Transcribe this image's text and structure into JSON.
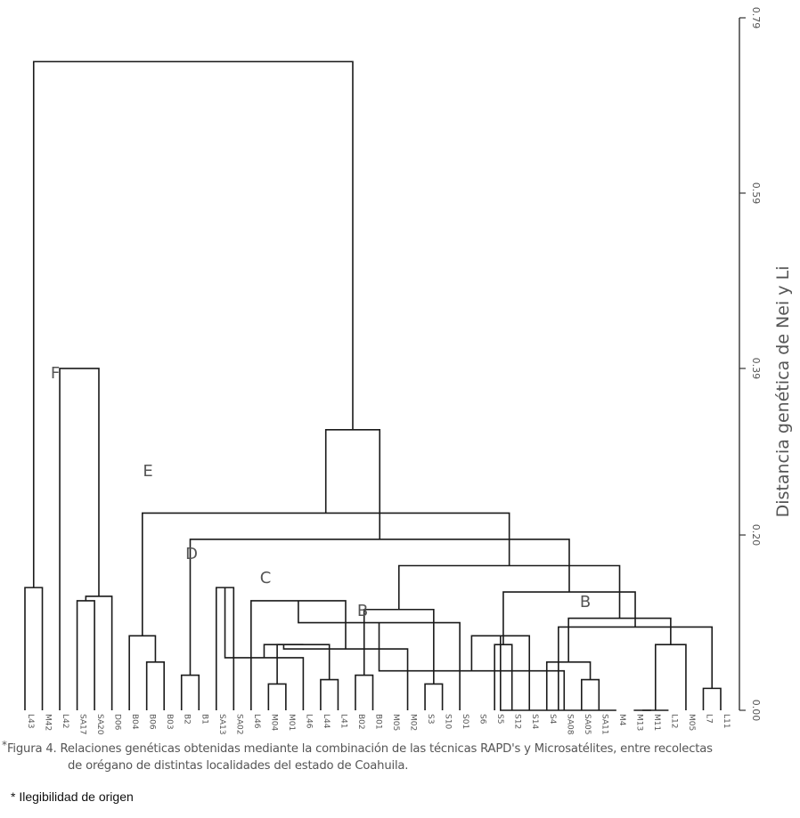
{
  "chart_data": {
    "type": "dendrogram",
    "axis": {
      "label": "Distancia genética de Nei y Li",
      "ticks": [
        "0.79",
        "0.59",
        "0.39",
        "0.20",
        "0.00"
      ],
      "range": [
        0.0,
        0.79
      ]
    },
    "leaves": [
      "L43",
      "M42",
      "L42",
      "SA17",
      "SA20",
      "D06",
      "B04",
      "B06",
      "B03",
      "B2",
      "B1",
      "SA13",
      "SA02",
      "L46",
      "M04",
      "M01",
      "L46",
      "L44",
      "L41",
      "B02",
      "B01",
      "M05",
      "M02",
      "S3",
      "S10",
      "S01",
      "S6",
      "S5",
      "S12",
      "S14",
      "S4",
      "SA08",
      "SA05",
      "SA11",
      "M4",
      "M13",
      "M11",
      "L12",
      "M05",
      "L7",
      "L11"
    ],
    "clusters": [
      "F",
      "E",
      "D",
      "C",
      "B",
      "B"
    ],
    "merges": [
      {
        "a": 0,
        "b": 1,
        "h": 0.14
      },
      {
        "a": 3,
        "b": 4,
        "h": 0.125
      },
      {
        "a": 7,
        "b": 8,
        "h": 0.055
      },
      {
        "a": 6,
        "b": 43,
        "h": 0.085
      },
      {
        "a": 9,
        "b": 10,
        "h": 0.04
      },
      {
        "a": 11,
        "b": 12,
        "h": 0.14
      },
      {
        "a": 14,
        "b": 15,
        "h": 0.03
      },
      {
        "a": 17,
        "b": 18,
        "h": 0.035
      },
      {
        "a": 46,
        "b": 16,
        "h": 0.06
      },
      {
        "a": 48,
        "b": 47,
        "h": 0.075
      },
      {
        "a": 19,
        "b": 20,
        "h": 0.04
      },
      {
        "a": 49,
        "b": 50,
        "h": 0.075
      },
      {
        "a": 23,
        "b": 24,
        "h": 0.03
      },
      {
        "a": 22,
        "b": 52,
        "h": 0.07
      },
      {
        "a": 51,
        "b": 53,
        "h": 0.115
      },
      {
        "a": 13,
        "b": 54,
        "h": 0.125
      },
      {
        "a": 27,
        "b": 28,
        "h": 0.075
      },
      {
        "a": 25,
        "b": 56,
        "h": 0.1
      },
      {
        "a": 32,
        "b": 33,
        "h": 0.035
      },
      {
        "a": 31,
        "b": 58,
        "h": 0.045
      },
      {
        "a": 30,
        "b": 59,
        "h": 0.055
      },
      {
        "a": 29,
        "b": 60,
        "h": 0.085
      },
      {
        "a": 35,
        "b": 36,
        "h": 0.0
      },
      {
        "a": 34,
        "b": 62,
        "h": 0.0
      },
      {
        "a": 37,
        "b": 63,
        "h": 0.0
      },
      {
        "a": 39,
        "b": 40,
        "h": 0.025
      },
      {
        "a": 38,
        "b": 65,
        "h": 0.075
      },
      {
        "a": 64,
        "b": 66,
        "h": 0.095
      },
      {
        "a": 61,
        "b": 67,
        "h": 0.105
      },
      {
        "a": 57,
        "b": 68,
        "h": 0.135
      },
      {
        "a": 55,
        "b": 69,
        "h": 0.165
      },
      {
        "a": 45,
        "b": 70,
        "h": 0.195
      },
      {
        "a": 44,
        "b": 71,
        "h": 0.225
      },
      {
        "a": 5,
        "b": 42,
        "h": 0.13
      },
      {
        "a": 73,
        "b": 72,
        "h": 0.32
      },
      {
        "a": 2,
        "b": 74,
        "h": 0.39
      },
      {
        "a": 41,
        "b": 75,
        "h": 0.74
      }
    ]
  },
  "caption": {
    "marker": "*",
    "line1": "Figura 4. Relaciones genéticas obtenidas mediante la combinación de las técnicas RAPD's y Microsatélites, entre recolectas",
    "line2": "de orégano de distintas localidades del estado de Coahuila."
  },
  "footnote": "* Ilegibilidad de origen"
}
